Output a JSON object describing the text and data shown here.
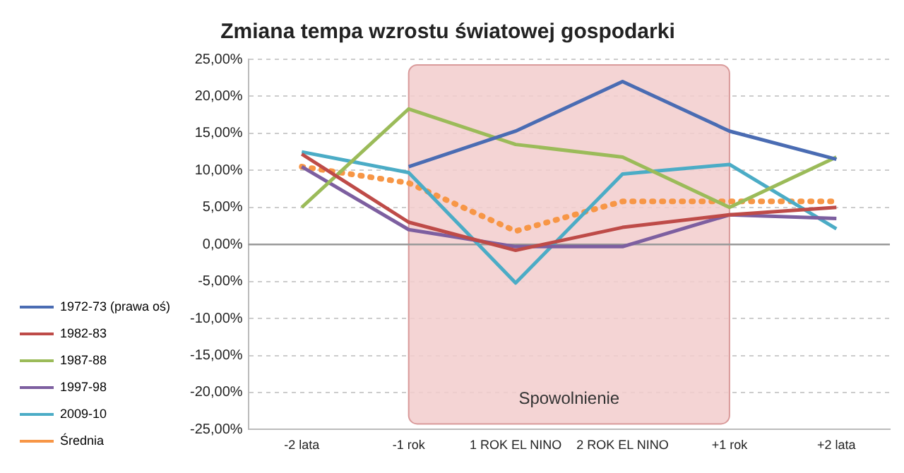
{
  "chart_data": {
    "type": "line",
    "title": "Zmiana tempa wzrostu światowej gospodarki",
    "categories": [
      "-2 lata",
      "-1 rok",
      "1 ROK EL NINO",
      "2 ROK EL NINO",
      "+1 rok",
      "+2 lata"
    ],
    "series": [
      {
        "name": "1972-73 (prawa oś)",
        "color": "#4a6cb3",
        "values": [
          null,
          10.5,
          15.3,
          22,
          15.3,
          11.5
        ]
      },
      {
        "name": "1982-83",
        "color": "#be4b48",
        "values": [
          12.2,
          3,
          -0.8,
          2.3,
          4,
          5
        ]
      },
      {
        "name": "1987-88",
        "color": "#9bbb59",
        "values": [
          5,
          18.3,
          13.5,
          11.8,
          5,
          11.8
        ]
      },
      {
        "name": "1997-98",
        "color": "#7d5fa0",
        "values": [
          10.5,
          2,
          -0.3,
          -0.3,
          4,
          3.5
        ]
      },
      {
        "name": "2009-10",
        "color": "#4bacc6",
        "values": [
          12.5,
          9.7,
          -5.2,
          9.5,
          10.8,
          2.1
        ]
      },
      {
        "name": "Średnia",
        "color": "#f79646",
        "line_style": "dotted",
        "values": [
          10.5,
          8.3,
          1.8,
          5.8,
          5.8,
          5.8
        ]
      }
    ],
    "ylim": [
      -25,
      25
    ],
    "yticks": [
      {
        "value": -25,
        "label": "-25,00%"
      },
      {
        "value": -20,
        "label": "-20,00%"
      },
      {
        "value": -15,
        "label": "-15,00%"
      },
      {
        "value": -10,
        "label": "-10,00%"
      },
      {
        "value": -5,
        "label": "-5,00%"
      },
      {
        "value": 0,
        "label": "0,00%"
      },
      {
        "value": 5,
        "label": "5,00%"
      },
      {
        "value": 10,
        "label": "10,00%"
      },
      {
        "value": 15,
        "label": "15,00%"
      },
      {
        "value": 20,
        "label": "20,00%"
      },
      {
        "value": 25,
        "label": "25,00%"
      }
    ],
    "bands": [
      {
        "axis": "x",
        "from": "-1 rok",
        "to": "+1 rok",
        "label": "Spowolnienie",
        "color": "#f2cccc"
      }
    ],
    "ref_lines": [
      {
        "axis": "y",
        "value": 0,
        "color": "#999999"
      }
    ],
    "grid": "y",
    "legend": "bottom left",
    "marker": "none",
    "line_style": "solid"
  }
}
